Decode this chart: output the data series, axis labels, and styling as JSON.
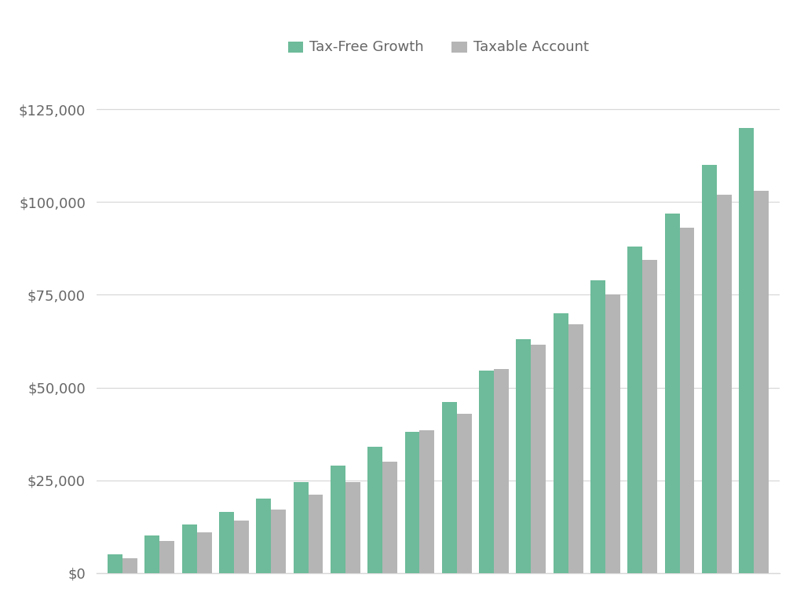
{
  "tax_free": [
    5000,
    10000,
    13000,
    16500,
    20000,
    24500,
    29000,
    34000,
    38000,
    46000,
    54500,
    63000,
    70000,
    79000,
    88000,
    97000,
    110000,
    120000
  ],
  "taxable": [
    4000,
    8500,
    11000,
    14000,
    17000,
    21000,
    24500,
    30000,
    38500,
    43000,
    55000,
    61500,
    67000,
    75000,
    84500,
    93000,
    102000,
    103000
  ],
  "tax_free_color": "#6dbb9a",
  "taxable_color": "#b5b5b5",
  "background_color": "#ffffff",
  "legend_tax_free": "Tax-Free Growth",
  "legend_taxable": "Taxable Account",
  "ylim": [
    0,
    135000
  ],
  "yticks": [
    0,
    25000,
    50000,
    75000,
    100000,
    125000
  ],
  "bar_width": 0.4,
  "legend_fontsize": 13,
  "tick_fontsize": 13,
  "grid_color": "#d8d8d8",
  "label_color": "#666666",
  "legend_marker_size": 12
}
